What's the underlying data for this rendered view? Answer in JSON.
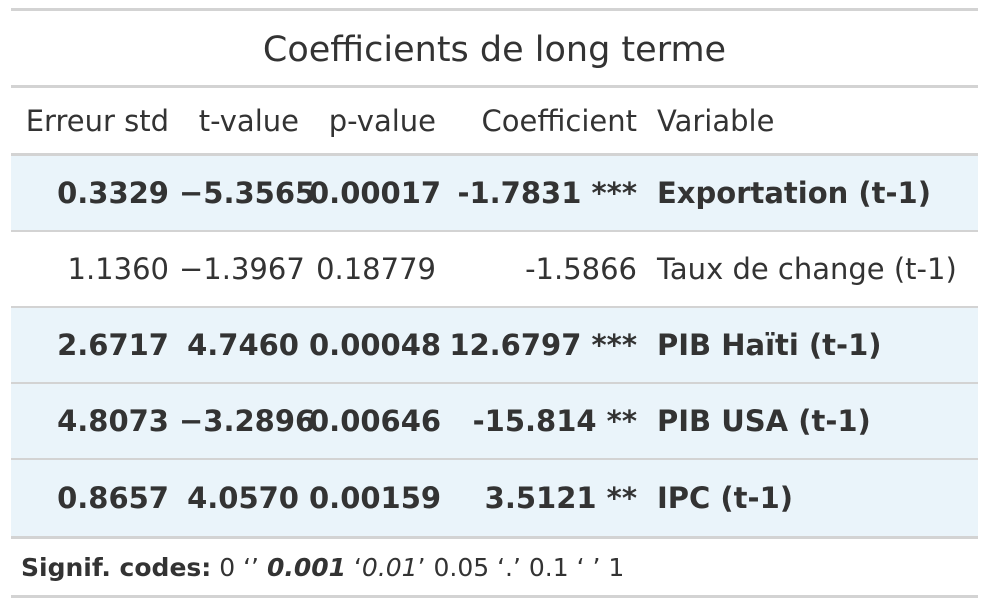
{
  "table": {
    "title": "Coefficients de long terme",
    "headers": [
      "Erreur std",
      "t-value",
      "p-value",
      "Coefficient",
      "Variable"
    ],
    "rows": [
      {
        "erreur_std": "0.3329",
        "t_value": "−5.3565",
        "p_value": "0.00017",
        "coefficient": "-1.7831 ***",
        "variable": "Exportation (t-1)",
        "bold": true,
        "shaded": true
      },
      {
        "erreur_std": "1.1360",
        "t_value": "−1.3967",
        "p_value": "0.18779",
        "coefficient": "-1.5866",
        "variable": "Taux de change (t-1)",
        "bold": false,
        "shaded": false
      },
      {
        "erreur_std": "2.6717",
        "t_value": "4.7460",
        "p_value": "0.00048",
        "coefficient": "12.6797 ***",
        "variable": "PIB Haïti (t-1)",
        "bold": true,
        "shaded": true
      },
      {
        "erreur_std": "4.8073",
        "t_value": "−3.2896",
        "p_value": "0.00646",
        "coefficient": "-15.814 **",
        "variable": "PIB USA (t-1)",
        "bold": true,
        "shaded": true
      },
      {
        "erreur_std": "0.8657",
        "t_value": "4.0570",
        "p_value": "0.00159",
        "coefficient": "3.5121 **",
        "variable": "IPC (t-1)",
        "bold": true,
        "shaded": true
      }
    ],
    "footnote": {
      "label": "Signif. codes:",
      "part1": " 0 ‘",
      "part2": "’ ",
      "code_001": "0.001",
      "part3": " ‘",
      "code_01": "0.01",
      "part4": "’ ",
      "part5": "0.05 ‘.’ 0.1 ‘ ’ 1",
      "quote_open": "‘",
      "quote_close": "’ "
    }
  },
  "colors": {
    "shade": "#eaf4fa",
    "rule": "#d3d3d3",
    "text": "#333333"
  }
}
